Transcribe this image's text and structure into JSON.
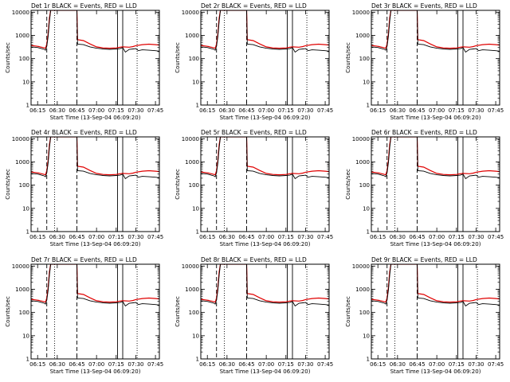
{
  "figure": {
    "title_suffix": " BLACK = Events, RED = LLD",
    "xlabel": "Start Time (13-Sep-04 06:09:20)",
    "ylabel": "Counts/sec",
    "x_tick_labels": [
      "06:15",
      "06:30",
      "06:45",
      "07:00",
      "07:15",
      "07:30",
      "07:45"
    ],
    "y_tick_labels": [
      "1",
      "10",
      "100",
      "1000",
      "10000"
    ],
    "colors": {
      "events": "#000000",
      "lld": "#e00000"
    }
  },
  "chart_data": [
    {
      "type": "line",
      "title": "Det 1r BLACK = Events, RED = LLD",
      "detector": "Det 1r"
    },
    {
      "type": "line",
      "title": "Det 2r BLACK = Events, RED = LLD",
      "detector": "Det 2r"
    },
    {
      "type": "line",
      "title": "Det 3r BLACK = Events, RED = LLD",
      "detector": "Det 3r"
    },
    {
      "type": "line",
      "title": "Det 4r BLACK = Events, RED = LLD",
      "detector": "Det 4r"
    },
    {
      "type": "line",
      "title": "Det 5r BLACK = Events, RED = LLD",
      "detector": "Det 5r"
    },
    {
      "type": "line",
      "title": "Det 6r BLACK = Events, RED = LLD",
      "detector": "Det 6r"
    },
    {
      "type": "line",
      "title": "Det 7r BLACK = Events, RED = LLD",
      "detector": "Det 7r"
    },
    {
      "type": "line",
      "title": "Det 8r BLACK = Events, RED = LLD",
      "detector": "Det 8r"
    },
    {
      "type": "line",
      "title": "Det 9r BLACK = Events, RED = LLD",
      "detector": "Det 9r"
    }
  ],
  "shared_chart": {
    "x_unit": "minutes of day",
    "xlim": [
      370,
      468
    ],
    "ylim": [
      1,
      12000
    ],
    "y_scale": "log",
    "x_ticks": [
      375,
      390,
      405,
      420,
      435,
      450,
      465
    ],
    "y_ticks": [
      1,
      10,
      100,
      1000,
      10000
    ],
    "dashed_vlines": [
      382,
      405
    ],
    "solid_vlines": [
      436,
      440
    ],
    "dotted_vlines": [
      388,
      451
    ],
    "events": {
      "x": [
        370,
        375,
        376,
        377,
        378,
        379,
        380,
        381,
        382,
        383,
        384,
        385,
        386,
        405,
        405.5,
        410,
        415,
        420,
        425,
        430,
        435,
        438,
        440,
        442,
        445,
        448,
        450,
        452,
        455,
        460,
        465,
        468
      ],
      "y": [
        320,
        300,
        290,
        280,
        270,
        260,
        250,
        230,
        340,
        900,
        4000,
        12000,
        12000,
        12000,
        420,
        400,
        320,
        280,
        260,
        250,
        260,
        270,
        300,
        190,
        250,
        260,
        270,
        220,
        240,
        230,
        220,
        210
      ]
    },
    "lld": {
      "x": [
        370,
        375,
        376,
        377,
        378,
        379,
        380,
        381,
        382,
        383,
        384,
        385,
        386,
        405,
        405.5,
        410,
        415,
        420,
        425,
        430,
        435,
        438,
        440,
        445,
        448,
        450,
        455,
        460,
        465,
        468
      ],
      "y": [
        370,
        340,
        330,
        320,
        310,
        300,
        290,
        280,
        420,
        1200,
        5500,
        12000,
        12000,
        12000,
        650,
        600,
        430,
        320,
        290,
        280,
        290,
        310,
        320,
        310,
        330,
        360,
        400,
        420,
        400,
        380
      ]
    }
  }
}
